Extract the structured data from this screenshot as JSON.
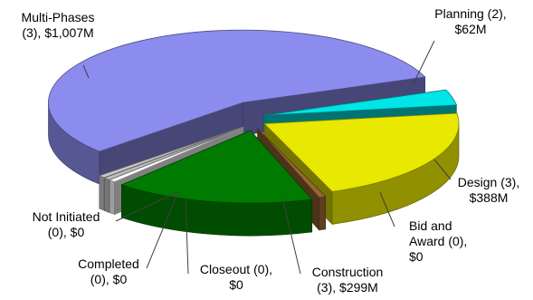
{
  "chart_data": {
    "type": "pie",
    "title": "",
    "slices": [
      {
        "label_lines": [
          "Planning (2),",
          "$62M"
        ],
        "category": "Planning",
        "count": 2,
        "value": 62,
        "color": "#00e5e5"
      },
      {
        "label_lines": [
          "Design (3),",
          "$388M"
        ],
        "category": "Design",
        "count": 3,
        "value": 388,
        "color": "#e8e800"
      },
      {
        "label_lines": [
          "Bid and",
          "Award (0),",
          "$0"
        ],
        "category": "Bid and Award",
        "count": 0,
        "value": 0,
        "color": "#996633"
      },
      {
        "label_lines": [
          "Construction",
          "(3), $299M"
        ],
        "category": "Construction",
        "count": 3,
        "value": 299,
        "color": "#007a00"
      },
      {
        "label_lines": [
          "Closeout (0),",
          "$0"
        ],
        "category": "Closeout",
        "count": 0,
        "value": 0,
        "color": "#ffffff"
      },
      {
        "label_lines": [
          "Completed",
          "(0), $0"
        ],
        "category": "Completed",
        "count": 0,
        "value": 0,
        "color": "#c0c0c0"
      },
      {
        "label_lines": [
          "Not Initiated",
          "(0), $0"
        ],
        "category": "Not Initiated",
        "count": 0,
        "value": 0,
        "color": "#c8c8c8"
      },
      {
        "label_lines": [
          "Multi-Phases",
          "(3), $1,007M"
        ],
        "category": "Multi-Phases",
        "count": 3,
        "value": 1007,
        "color": "#8c8cee"
      }
    ],
    "style": "3d-exploded"
  }
}
